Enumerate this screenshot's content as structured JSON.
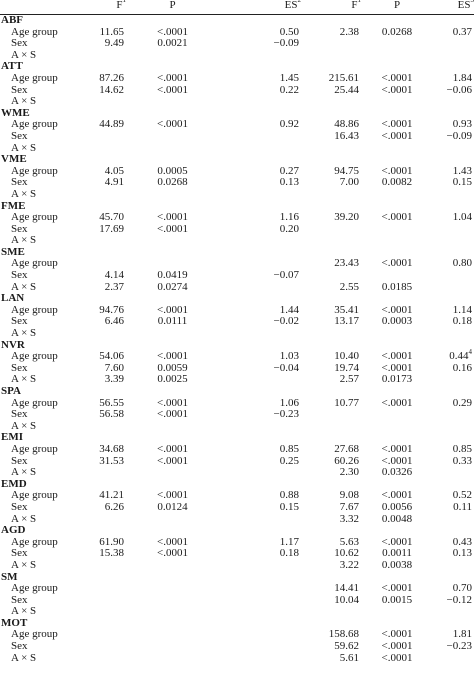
{
  "header": {
    "f1": "F",
    "f1_sup": "1",
    "p1": "P",
    "es1": "ES",
    "es1_sup": "2",
    "f2": "F",
    "f2_sup": "1",
    "p2": "P",
    "es2": "ES",
    "es2_sup": "3"
  },
  "sections": [
    {
      "name": "ABF",
      "rows": [
        {
          "label": "Age group",
          "f1": "11.65",
          "p1": "<.0001",
          "es1": "0.50",
          "f2": "2.38",
          "p2": "0.0268",
          "es2": "0.37"
        },
        {
          "label": "Sex",
          "f1": "9.49",
          "p1": "0.0021",
          "es1": "−0.09",
          "f2": "",
          "p2": "",
          "es2": ""
        },
        {
          "label": "A × S",
          "f1": "",
          "p1": "",
          "es1": "",
          "f2": "",
          "p2": "",
          "es2": ""
        }
      ]
    },
    {
      "name": "ATT",
      "rows": [
        {
          "label": "Age group",
          "f1": "87.26",
          "p1": "<.0001",
          "es1": "1.45",
          "f2": "215.61",
          "p2": "<.0001",
          "es2": "1.84"
        },
        {
          "label": "Sex",
          "f1": "14.62",
          "p1": "<.0001",
          "es1": "0.22",
          "f2": "25.44",
          "p2": "<.0001",
          "es2": "−0.06"
        },
        {
          "label": "A × S",
          "f1": "",
          "p1": "",
          "es1": "",
          "f2": "",
          "p2": "",
          "es2": ""
        }
      ]
    },
    {
      "name": "WME",
      "rows": [
        {
          "label": "Age group",
          "f1": "44.89",
          "p1": "<.0001",
          "es1": "0.92",
          "f2": "48.86",
          "p2": "<.0001",
          "es2": "0.93"
        },
        {
          "label": "Sex",
          "f1": "",
          "p1": "",
          "es1": "",
          "f2": "16.43",
          "p2": "<.0001",
          "es2": "−0.09"
        },
        {
          "label": "A × S",
          "f1": "",
          "p1": "",
          "es1": "",
          "f2": "",
          "p2": "",
          "es2": ""
        }
      ]
    },
    {
      "name": "VME",
      "rows": [
        {
          "label": "Age group",
          "f1": "4.05",
          "p1": "0.0005",
          "es1": "0.27",
          "f2": "94.75",
          "p2": "<.0001",
          "es2": "1.43"
        },
        {
          "label": "Sex",
          "f1": "4.91",
          "p1": "0.0268",
          "es1": "0.13",
          "f2": "7.00",
          "p2": "0.0082",
          "es2": "0.15"
        },
        {
          "label": "A × S",
          "f1": "",
          "p1": "",
          "es1": "",
          "f2": "",
          "p2": "",
          "es2": ""
        }
      ]
    },
    {
      "name": "FME",
      "rows": [
        {
          "label": "Age group",
          "f1": "45.70",
          "p1": "<.0001",
          "es1": "1.16",
          "f2": "39.20",
          "p2": "<.0001",
          "es2": "1.04"
        },
        {
          "label": "Sex",
          "f1": "17.69",
          "p1": "<.0001",
          "es1": "0.20",
          "f2": "",
          "p2": "",
          "es2": ""
        },
        {
          "label": "A × S",
          "f1": "",
          "p1": "",
          "es1": "",
          "f2": "",
          "p2": "",
          "es2": ""
        }
      ]
    },
    {
      "name": "SME",
      "rows": [
        {
          "label": "Age group",
          "f1": "",
          "p1": "",
          "es1": "",
          "f2": "23.43",
          "p2": "<.0001",
          "es2": "0.80"
        },
        {
          "label": "Sex",
          "f1": "4.14",
          "p1": "0.0419",
          "es1": "−0.07",
          "f2": "",
          "p2": "",
          "es2": ""
        },
        {
          "label": "A × S",
          "f1": "2.37",
          "p1": "0.0274",
          "es1": "",
          "f2": "2.55",
          "p2": "0.0185",
          "es2": ""
        }
      ]
    },
    {
      "name": "LAN",
      "rows": [
        {
          "label": "Age group",
          "f1": "94.76",
          "p1": "<.0001",
          "es1": "1.44",
          "f2": "35.41",
          "p2": "<.0001",
          "es2": "1.14"
        },
        {
          "label": "Sex",
          "f1": "6.46",
          "p1": "0.0111",
          "es1": "−0.02",
          "f2": "13.17",
          "p2": "0.0003",
          "es2": "0.18"
        },
        {
          "label": "A × S",
          "f1": "",
          "p1": "",
          "es1": "",
          "f2": "",
          "p2": "",
          "es2": ""
        }
      ]
    },
    {
      "name": "NVR",
      "rows": [
        {
          "label": "Age group",
          "f1": "54.06",
          "p1": "<.0001",
          "es1": "1.03",
          "f2": "10.40",
          "p2": "<.0001",
          "es2": "0.44",
          "es2_sup": "4"
        },
        {
          "label": "Sex",
          "f1": "7.60",
          "p1": "0.0059",
          "es1": "−0.04",
          "f2": "19.74",
          "p2": "<.0001",
          "es2": "0.16"
        },
        {
          "label": "A × S",
          "f1": "3.39",
          "p1": "0.0025",
          "es1": "",
          "f2": "2.57",
          "p2": "0.0173",
          "es2": ""
        }
      ]
    },
    {
      "name": "SPA",
      "rows": [
        {
          "label": "Age group",
          "f1": "56.55",
          "p1": "<.0001",
          "es1": "1.06",
          "f2": "10.77",
          "p2": "<.0001",
          "es2": "0.29"
        },
        {
          "label": "Sex",
          "f1": "56.58",
          "p1": "<.0001",
          "es1": "−0.23",
          "f2": "",
          "p2": "",
          "es2": ""
        },
        {
          "label": "A × S",
          "f1": "",
          "p1": "",
          "es1": "",
          "f2": "",
          "p2": "",
          "es2": ""
        }
      ]
    },
    {
      "name": "EMI",
      "rows": [
        {
          "label": "Age group",
          "f1": "34.68",
          "p1": "<.0001",
          "es1": "0.85",
          "f2": "27.68",
          "p2": "<.0001",
          "es2": "0.85"
        },
        {
          "label": "Sex",
          "f1": "31.53",
          "p1": "<.0001",
          "es1": "0.25",
          "f2": "60.26",
          "p2": "<.0001",
          "es2": "0.33"
        },
        {
          "label": "A × S",
          "f1": "",
          "p1": "",
          "es1": "",
          "f2": "2.30",
          "p2": "0.0326",
          "es2": ""
        }
      ]
    },
    {
      "name": "EMD",
      "rows": [
        {
          "label": "Age group",
          "f1": "41.21",
          "p1": "<.0001",
          "es1": "0.88",
          "f2": "9.08",
          "p2": "<.0001",
          "es2": "0.52"
        },
        {
          "label": "Sex",
          "f1": "6.26",
          "p1": "0.0124",
          "es1": "0.15",
          "f2": "7.67",
          "p2": "0.0056",
          "es2": "0.11"
        },
        {
          "label": "A × S",
          "f1": "",
          "p1": "",
          "es1": "",
          "f2": "3.32",
          "p2": "0.0048",
          "es2": ""
        }
      ]
    },
    {
      "name": "AGD",
      "rows": [
        {
          "label": "Age group",
          "f1": "61.90",
          "p1": "<.0001",
          "es1": "1.17",
          "f2": "5.63",
          "p2": "<.0001",
          "es2": "0.43"
        },
        {
          "label": "Sex",
          "f1": "15.38",
          "p1": "<.0001",
          "es1": "0.18",
          "f2": "10.62",
          "p2": "0.0011",
          "es2": "0.13"
        },
        {
          "label": "A × S",
          "f1": "",
          "p1": "",
          "es1": "",
          "f2": "3.22",
          "p2": "0.0038",
          "es2": ""
        }
      ]
    },
    {
      "name": "SM",
      "rows": [
        {
          "label": "Age group",
          "f1": "",
          "p1": "",
          "es1": "",
          "f2": "14.41",
          "p2": "<.0001",
          "es2": "0.70"
        },
        {
          "label": "Sex",
          "f1": "",
          "p1": "",
          "es1": "",
          "f2": "10.04",
          "p2": "0.0015",
          "es2": "−0.12"
        },
        {
          "label": "A × S",
          "f1": "",
          "p1": "",
          "es1": "",
          "f2": "",
          "p2": "",
          "es2": ""
        }
      ]
    },
    {
      "name": "MOT",
      "rows": [
        {
          "label": "Age group",
          "f1": "",
          "p1": "",
          "es1": "",
          "f2": "158.68",
          "p2": "<.0001",
          "es2": "1.81"
        },
        {
          "label": "Sex",
          "f1": "",
          "p1": "",
          "es1": "",
          "f2": "59.62",
          "p2": "<.0001",
          "es2": "−0.23"
        },
        {
          "label": "A × S",
          "f1": "",
          "p1": "",
          "es1": "",
          "f2": "5.61",
          "p2": "<.0001",
          "es2": ""
        }
      ]
    }
  ]
}
